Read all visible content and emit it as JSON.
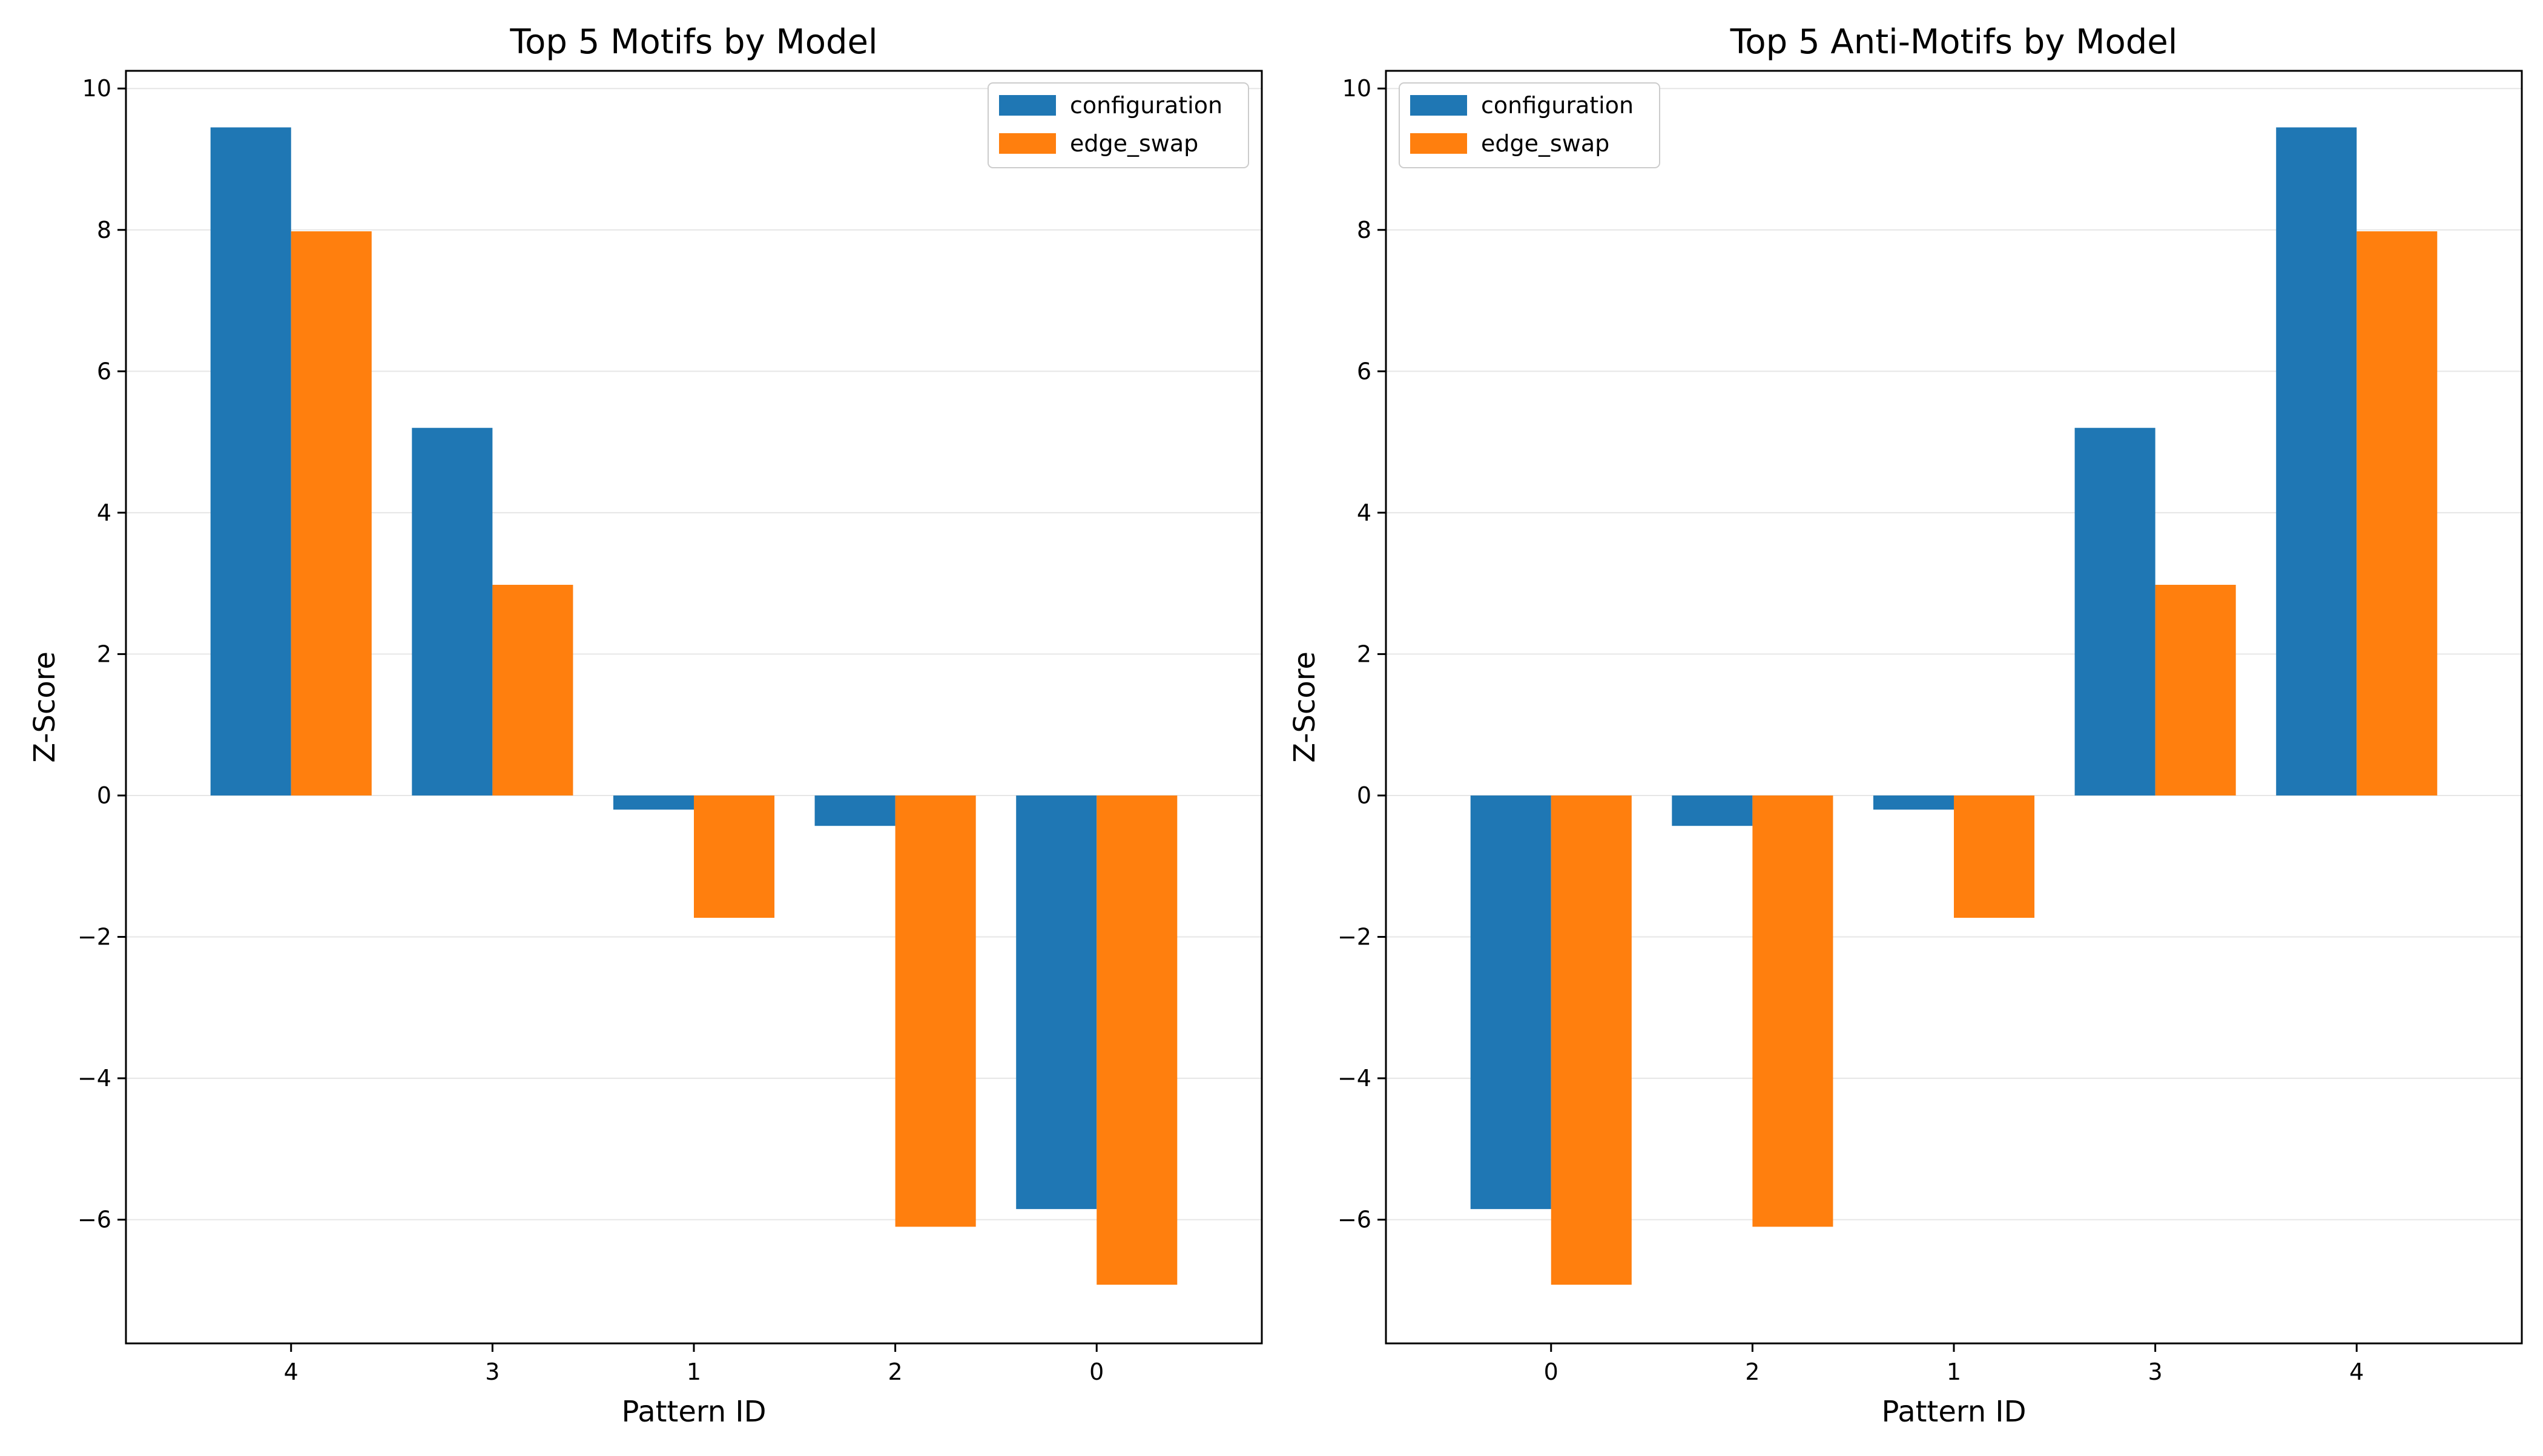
{
  "colors": {
    "configuration": "#1f77b4",
    "edge_swap": "#ff7f0e",
    "grid": "#e6e6e6",
    "axis": "#000000"
  },
  "chart_data": [
    {
      "type": "bar",
      "title": "Top 5 Motifs by Model",
      "xlabel": "Pattern ID",
      "ylabel": "Z-Score",
      "categories": [
        "4",
        "3",
        "1",
        "2",
        "0"
      ],
      "series": [
        {
          "name": "configuration",
          "values": [
            9.45,
            5.2,
            -0.2,
            -0.43,
            -5.85
          ]
        },
        {
          "name": "edge_swap",
          "values": [
            7.98,
            2.98,
            -1.73,
            -6.1,
            -6.92
          ]
        }
      ],
      "ylim": [
        -7.75,
        10.25
      ],
      "yticks": [
        -6,
        -4,
        -2,
        0,
        2,
        4,
        6,
        8,
        10
      ],
      "ytick_labels": [
        "−6",
        "−4",
        "−2",
        "0",
        "2",
        "4",
        "6",
        "8",
        "10"
      ],
      "grid": "y",
      "legend": "upper right"
    },
    {
      "type": "bar",
      "title": "Top 5 Anti-Motifs by Model",
      "xlabel": "Pattern ID",
      "ylabel": "Z-Score",
      "categories": [
        "0",
        "2",
        "1",
        "3",
        "4"
      ],
      "series": [
        {
          "name": "configuration",
          "values": [
            -5.85,
            -0.43,
            -0.2,
            5.2,
            9.45
          ]
        },
        {
          "name": "edge_swap",
          "values": [
            -6.92,
            -6.1,
            -1.73,
            2.98,
            7.98
          ]
        }
      ],
      "ylim": [
        -7.75,
        10.25
      ],
      "yticks": [
        -6,
        -4,
        -2,
        0,
        2,
        4,
        6,
        8,
        10
      ],
      "ytick_labels": [
        "−6",
        "−4",
        "−2",
        "0",
        "2",
        "4",
        "6",
        "8",
        "10"
      ],
      "grid": "y",
      "legend": "upper left"
    }
  ]
}
